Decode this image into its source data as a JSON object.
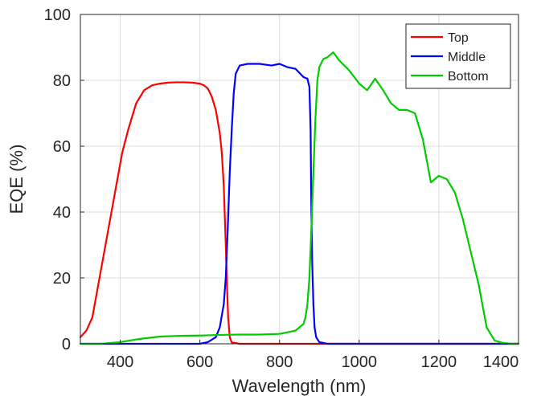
{
  "chart_data": {
    "type": "line",
    "title": "",
    "xlabel": "Wavelength (nm)",
    "ylabel": "EQE (%)",
    "xlim": [
      300,
      1400
    ],
    "ylim": [
      0,
      100
    ],
    "xticks": [
      400,
      600,
      800,
      1000,
      1200,
      1400
    ],
    "yticks": [
      0,
      20,
      40,
      60,
      80,
      100
    ],
    "grid": true,
    "legend_position": "top-right",
    "series": [
      {
        "name": "Top",
        "color": "#ff0000",
        "x": [
          300,
          315,
          330,
          345,
          360,
          375,
          390,
          405,
          420,
          440,
          460,
          480,
          500,
          520,
          540,
          560,
          580,
          600,
          610,
          620,
          630,
          640,
          650,
          655,
          660,
          665,
          668,
          671,
          675,
          680,
          700,
          800,
          900,
          1000,
          1100,
          1200,
          1300,
          1400
        ],
        "y": [
          2,
          4,
          8,
          18,
          28,
          38,
          48,
          58,
          65,
          73,
          77,
          78.5,
          79,
          79.3,
          79.4,
          79.4,
          79.3,
          79,
          78.5,
          77.5,
          75,
          71,
          64,
          58,
          48,
          30,
          18,
          8,
          2,
          0.4,
          0,
          0,
          0,
          0,
          0,
          0,
          0,
          0
        ]
      },
      {
        "name": "Middle",
        "color": "#0000ff",
        "x": [
          300,
          400,
          500,
          600,
          620,
          640,
          650,
          660,
          665,
          670,
          675,
          680,
          685,
          690,
          700,
          720,
          750,
          780,
          800,
          820,
          840,
          860,
          870,
          875,
          878,
          880,
          882,
          885,
          888,
          892,
          900,
          920,
          1000,
          1100,
          1200,
          1300,
          1400
        ],
        "y": [
          0,
          0,
          0,
          0,
          0.5,
          2,
          5,
          12,
          20,
          35,
          52,
          65,
          76,
          82,
          84.5,
          85,
          85,
          84.5,
          85,
          84,
          83.5,
          81,
          80.5,
          78,
          65,
          40,
          25,
          12,
          5,
          2,
          0.5,
          0,
          0,
          0,
          0,
          0,
          0
        ]
      },
      {
        "name": "Bottom",
        "color": "#00cc00",
        "x": [
          300,
          350,
          400,
          450,
          500,
          550,
          600,
          650,
          700,
          750,
          800,
          820,
          840,
          860,
          865,
          870,
          875,
          880,
          885,
          890,
          895,
          900,
          910,
          920,
          935,
          950,
          975,
          1000,
          1020,
          1040,
          1060,
          1080,
          1100,
          1120,
          1140,
          1160,
          1180,
          1200,
          1220,
          1240,
          1260,
          1280,
          1300,
          1320,
          1340,
          1360,
          1380,
          1400
        ],
        "y": [
          0,
          0,
          0.5,
          1.5,
          2.2,
          2.4,
          2.5,
          2.7,
          2.8,
          2.8,
          3,
          3.5,
          4,
          6,
          8,
          12,
          20,
          35,
          52,
          68,
          80,
          84,
          86.5,
          87,
          88.5,
          86,
          83,
          79,
          77,
          80.5,
          77,
          73,
          71,
          71,
          70,
          62,
          49,
          51,
          50,
          46,
          38,
          28,
          18,
          5,
          1,
          0.3,
          0,
          0
        ]
      }
    ]
  }
}
